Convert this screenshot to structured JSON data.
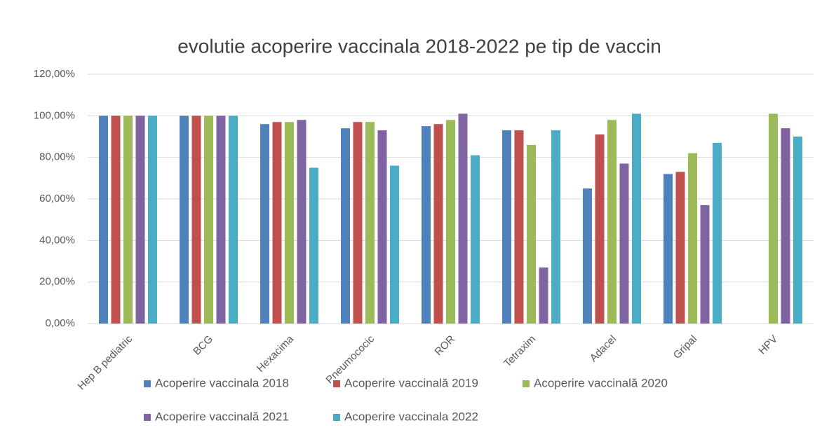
{
  "chart_data": {
    "type": "bar",
    "title": "evolutie acoperire vaccinala 2018-2022 pe tip de vaccin",
    "categories": [
      "Hep B pediatric",
      "BCG",
      "Hexacima",
      "Pneumococic",
      "ROR",
      "Tetraxim",
      "Adacel",
      "Gripal",
      "HPV"
    ],
    "series": [
      {
        "name": "Acoperire vaccinala 2018",
        "color": "#4f81bd",
        "values": [
          100,
          100,
          96,
          94,
          95,
          93,
          65,
          72,
          null
        ]
      },
      {
        "name": "Acoperire vaccinală 2019",
        "color": "#c0504d",
        "values": [
          100,
          100,
          97,
          97,
          96,
          93,
          91,
          73,
          null
        ]
      },
      {
        "name": "Acoperire vaccinală 2020",
        "color": "#9bbb59",
        "values": [
          100,
          100,
          97,
          97,
          98,
          86,
          98,
          82,
          101
        ]
      },
      {
        "name": "Acoperire vaccinală 2021",
        "color": "#8064a2",
        "values": [
          100,
          100,
          98,
          93,
          101,
          27,
          77,
          57,
          94
        ]
      },
      {
        "name": "Acoperire vaccinala 2022",
        "color": "#4bacc6",
        "values": [
          100,
          100,
          75,
          76,
          81,
          93,
          101,
          87,
          90
        ]
      }
    ],
    "ylim": [
      0,
      120
    ],
    "yticks": [
      {
        "value": 0,
        "label": "0,00%"
      },
      {
        "value": 20,
        "label": "20,00%"
      },
      {
        "value": 40,
        "label": "40,00%"
      },
      {
        "value": 60,
        "label": "60,00%"
      },
      {
        "value": 80,
        "label": "80,00%"
      },
      {
        "value": 100,
        "label": "100,00%"
      },
      {
        "value": 120,
        "label": "120,00%"
      }
    ],
    "grid": true
  }
}
